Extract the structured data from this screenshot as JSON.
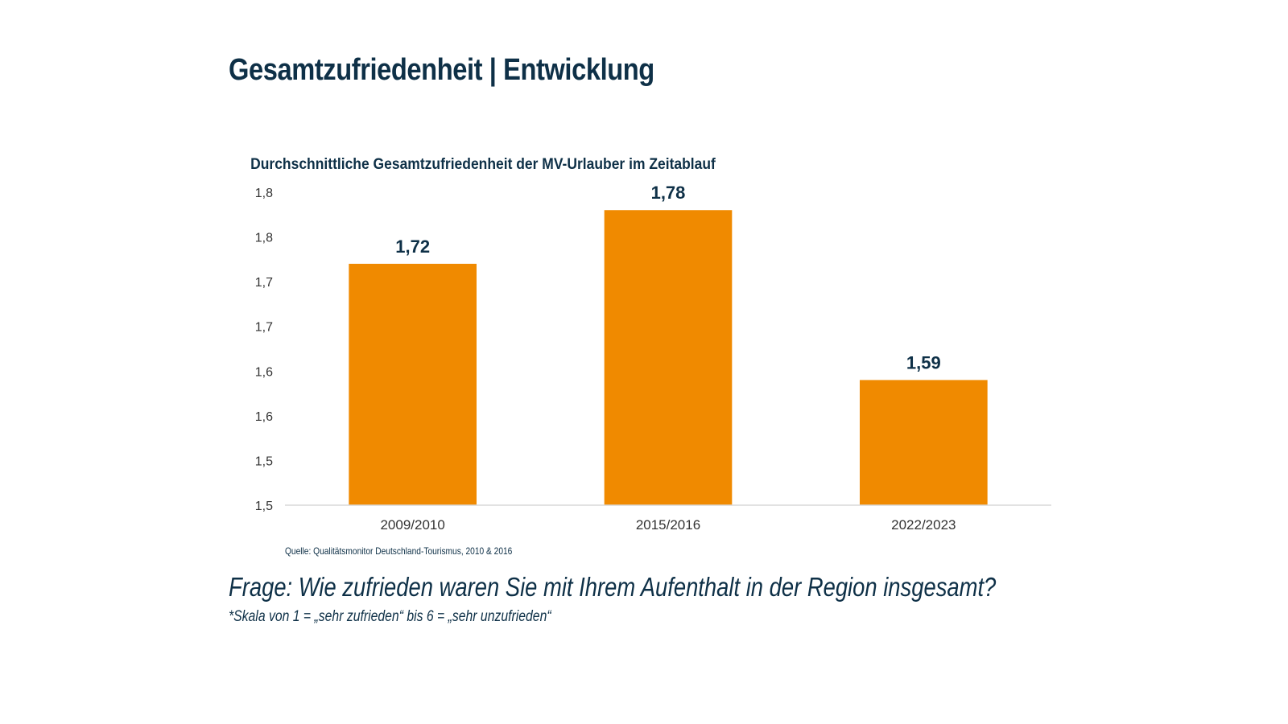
{
  "page": {
    "title": "Gesamtzufriedenheit | Entwicklung",
    "source": "Quelle: Qualitätsmonitor Deutschland-Tourismus, 2010 & 2016",
    "question": "Frage: Wie zufrieden waren Sie mit Ihrem Aufenthalt in der Region insgesamt?",
    "scale_note": "*Skala von 1 = „sehr zufrieden“ bis  6 = „sehr unzufrieden“"
  },
  "colors": {
    "bar": "#f08a00",
    "text": "#0e3047",
    "axis_line": "#d9d9d9",
    "tick_text": "#333333"
  },
  "chart_data": {
    "type": "bar",
    "title": "Durchschnittliche Gesamtzufriedenheit der MV-Urlauber im Zeitablauf",
    "categories": [
      "2009/2010",
      "2015/2016",
      "2022/2023"
    ],
    "values": [
      1.72,
      1.78,
      1.59
    ],
    "data_labels": [
      "1,72",
      "1,78",
      "1,59"
    ],
    "ylim": [
      1.45,
      1.8
    ],
    "yticks": [
      1.45,
      1.5,
      1.55,
      1.6,
      1.65,
      1.7,
      1.75,
      1.8
    ],
    "ytick_labels": [
      "1,5",
      "1,5",
      "1,6",
      "1,6",
      "1,7",
      "1,7",
      "1,8",
      "1,8"
    ],
    "xlabel": "",
    "ylabel": "",
    "grid": false,
    "legend": "none"
  }
}
